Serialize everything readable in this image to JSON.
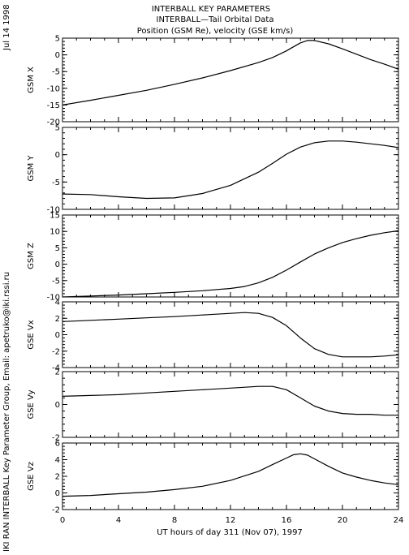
{
  "header": {
    "title_lines": [
      "INTERBALL KEY PARAMETERS",
      "INTERBALL—Tail Orbital Data",
      "Position (GSM Re), velocity (GSE km/s)"
    ]
  },
  "side": {
    "date": "Jul 14 1998",
    "credit": "IKI RAN INTERBALL Key Parameter Group, Email: apetruko@iki.rssi.ru"
  },
  "xaxis": {
    "label": "UT hours of day 311 (Nov 07), 1997",
    "range": [
      0,
      24
    ],
    "ticks": [
      "0",
      "4",
      "8",
      "12",
      "16",
      "20",
      "24"
    ]
  },
  "chart_data": [
    {
      "type": "line",
      "ylabel": "GSM X",
      "ylim": [
        -20,
        5
      ],
      "yticks": [
        "5",
        "0",
        "-5",
        "-10",
        "-15",
        "-20"
      ],
      "x": [
        0,
        2,
        4,
        6,
        8,
        10,
        12,
        14,
        15,
        16,
        16.5,
        17,
        17.5,
        18,
        19,
        20,
        21,
        22,
        23,
        24
      ],
      "values": [
        -15,
        -13.6,
        -12.1,
        -10.6,
        -8.8,
        -6.9,
        -4.7,
        -2.3,
        -0.8,
        1.2,
        2.4,
        3.6,
        4.3,
        4.3,
        3.3,
        1.8,
        0.2,
        -1.4,
        -2.8,
        -4.3
      ]
    },
    {
      "type": "line",
      "ylabel": "GSM Y",
      "ylim": [
        -10,
        5
      ],
      "yticks": [
        "5",
        "0",
        "-5",
        "-10"
      ],
      "x": [
        0,
        2,
        4,
        6,
        8,
        10,
        12,
        14,
        15,
        16,
        17,
        18,
        19,
        20,
        21,
        22,
        23,
        24
      ],
      "values": [
        -7.2,
        -7.3,
        -7.7,
        -8.0,
        -7.9,
        -7.1,
        -5.6,
        -3.2,
        -1.6,
        0.1,
        1.4,
        2.2,
        2.5,
        2.5,
        2.3,
        2.0,
        1.7,
        1.3
      ]
    },
    {
      "type": "line",
      "ylabel": "GSM Z",
      "ylim": [
        -10,
        15
      ],
      "yticks": [
        "15",
        "10",
        "5",
        "0",
        "-5",
        "-10"
      ],
      "x": [
        0,
        2,
        4,
        6,
        8,
        10,
        12,
        13,
        14,
        15,
        16,
        17,
        18,
        19,
        20,
        21,
        22,
        23,
        24
      ],
      "values": [
        -10,
        -9.7,
        -9.4,
        -9.0,
        -8.6,
        -8.1,
        -7.4,
        -6.8,
        -5.7,
        -4.0,
        -1.8,
        0.7,
        3.1,
        5.0,
        6.6,
        7.8,
        8.8,
        9.6,
        10.2
      ]
    },
    {
      "type": "line",
      "ylabel": "GSE Vx",
      "ylim": [
        -4,
        4
      ],
      "yticks": [
        "4",
        "2",
        "0",
        "-2",
        "-4"
      ],
      "x": [
        0,
        2,
        4,
        6,
        8,
        10,
        12,
        13,
        14,
        15,
        16,
        17,
        18,
        19,
        20,
        21,
        22,
        23,
        24
      ],
      "values": [
        1.6,
        1.75,
        1.9,
        2.05,
        2.2,
        2.4,
        2.6,
        2.7,
        2.6,
        2.1,
        1.1,
        -0.4,
        -1.7,
        -2.4,
        -2.7,
        -2.7,
        -2.7,
        -2.6,
        -2.45
      ]
    },
    {
      "type": "line",
      "ylabel": "GSE Vy",
      "ylim": [
        -2,
        2
      ],
      "yticks": [
        "2",
        "0",
        "-2"
      ],
      "x": [
        0,
        2,
        4,
        6,
        8,
        10,
        12,
        14,
        15,
        16,
        17,
        18,
        19,
        20,
        21,
        22,
        23,
        24
      ],
      "values": [
        0.5,
        0.55,
        0.6,
        0.7,
        0.8,
        0.9,
        1.0,
        1.1,
        1.1,
        0.9,
        0.4,
        -0.1,
        -0.4,
        -0.55,
        -0.6,
        -0.6,
        -0.65,
        -0.65
      ]
    },
    {
      "type": "line",
      "ylabel": "GSE Vz",
      "ylim": [
        -2,
        6
      ],
      "yticks": [
        "6",
        "4",
        "2",
        "0",
        "-2"
      ],
      "x": [
        0,
        2,
        4,
        6,
        8,
        10,
        12,
        14,
        15,
        16,
        16.5,
        17,
        17.5,
        18,
        19,
        20,
        21,
        22,
        23,
        24
      ],
      "values": [
        -0.4,
        -0.3,
        -0.1,
        0.1,
        0.4,
        0.8,
        1.5,
        2.6,
        3.4,
        4.2,
        4.6,
        4.7,
        4.55,
        4.1,
        3.2,
        2.4,
        1.9,
        1.5,
        1.2,
        1.0
      ]
    }
  ]
}
